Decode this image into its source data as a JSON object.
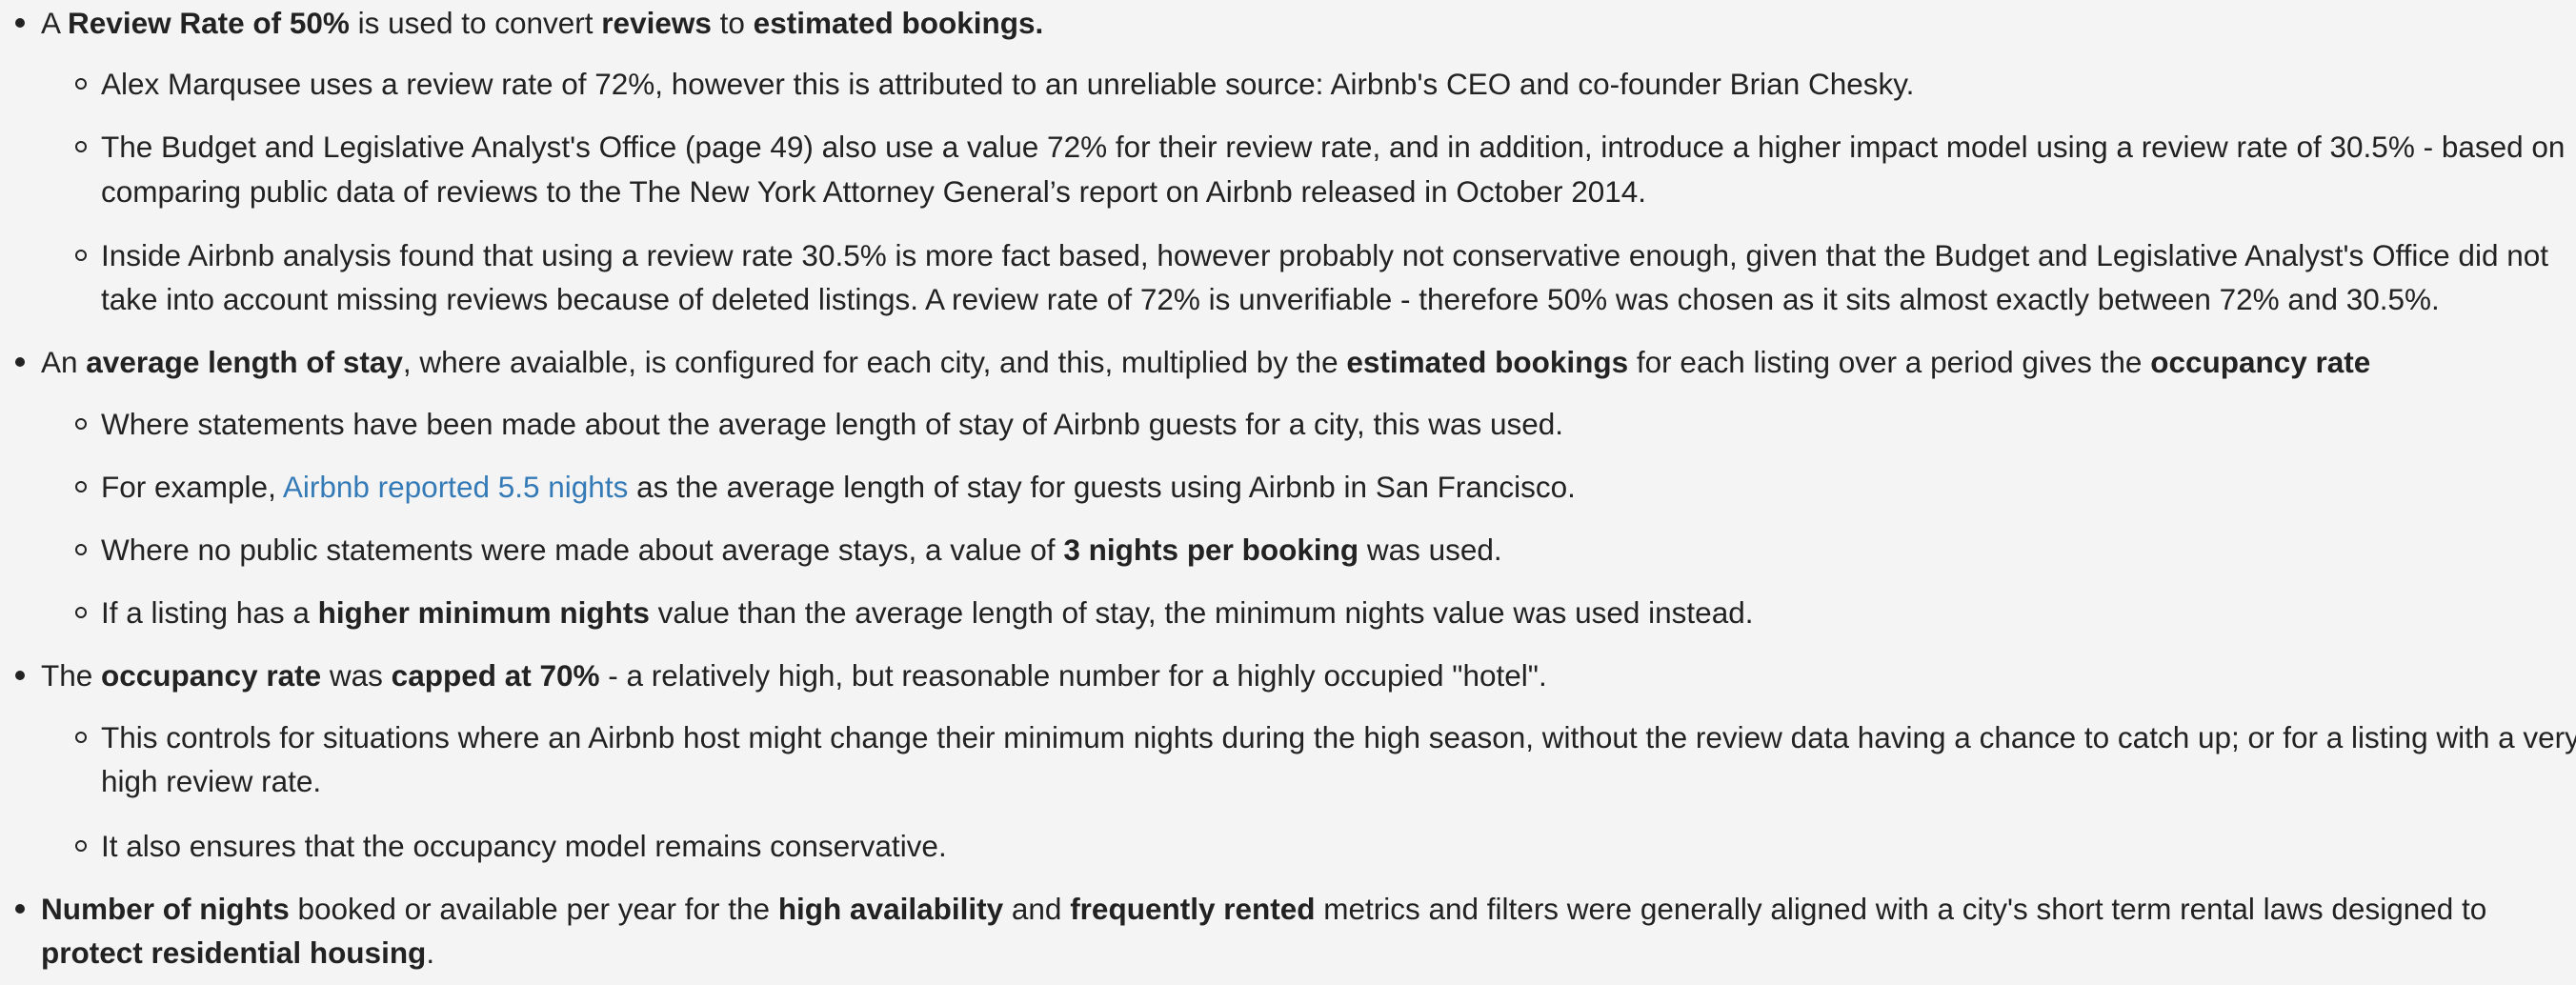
{
  "colors": {
    "text": "#222222",
    "background": "#f4f4f4",
    "link": "#337ab7"
  },
  "items": [
    {
      "segments": [
        {
          "text": "A ",
          "bold": false
        },
        {
          "text": "Review Rate of 50%",
          "bold": true
        },
        {
          "text": " is used to convert ",
          "bold": false
        },
        {
          "text": "reviews",
          "bold": true
        },
        {
          "text": " to ",
          "bold": false
        },
        {
          "text": "estimated bookings.",
          "bold": true
        }
      ],
      "subitems": [
        {
          "lines": [
            "Alex Marqusee uses a review rate of 72%, however this is attributed to an unreliable source: Airbnb's CEO and co-founder Brian Chesky."
          ]
        },
        {
          "lines": [
            "The Budget and Legislative Analyst's Office (page 49) also use a value 72% for their review rate, and in addition, introduce a higher impact model using a review rate of 30.5% - based on",
            "comparing public data of reviews to the The New York Attorney General’s report on Airbnb released in October 2014."
          ]
        },
        {
          "lines": [
            "Inside Airbnb analysis found that using a review rate 30.5% is more fact based, however probably not conservative enough, given that the Budget and Legislative Analyst's Office did not",
            "take into account missing reviews because of deleted listings. A review rate of 72% is unverifiable - therefore 50% was chosen as it sits almost exactly between 72% and 30.5%."
          ]
        }
      ]
    },
    {
      "segments": [
        {
          "text": "An ",
          "bold": false
        },
        {
          "text": "average length of stay",
          "bold": true
        },
        {
          "text": ", where avaialble, is configured for each city, and this, multiplied by the ",
          "bold": false
        },
        {
          "text": "estimated bookings",
          "bold": true
        },
        {
          "text": " for each listing over a period gives the ",
          "bold": false
        },
        {
          "text": "occupancy rate",
          "bold": true
        }
      ],
      "subitems": [
        {
          "text": "Where statements have been made about the average length of stay of Airbnb guests for a city, this was used."
        },
        {
          "before": "For example, ",
          "link": "Airbnb reported 5.5 nights",
          "after": " as the average length of stay for guests using Airbnb in San Francisco."
        },
        {
          "before": "Where no public statements were made about average stays, a value of ",
          "bold": "3 nights per booking",
          "after": " was used."
        },
        {
          "before": "If a listing has a ",
          "bold": "higher minimum nights",
          "after": " value than the average length of stay, the minimum nights value was used instead."
        }
      ]
    },
    {
      "segments": [
        {
          "text": "The ",
          "bold": false
        },
        {
          "text": "occupancy rate",
          "bold": true
        },
        {
          "text": " was ",
          "bold": false
        },
        {
          "text": "capped at 70%",
          "bold": true
        },
        {
          "text": " - a relatively high, but reasonable number for a highly occupied \"hotel\".",
          "bold": false
        }
      ],
      "subitems": [
        {
          "lines": [
            "This controls for situations where an Airbnb host might change their minimum nights during the high season, without the review data having a chance to catch up; or for a listing with a very",
            "high review rate."
          ]
        },
        {
          "lines": [
            "It also ensures that the occupancy model remains conservative."
          ]
        }
      ]
    },
    {
      "line1": [
        {
          "text": "Number of nights",
          "bold": true
        },
        {
          "text": " booked or available per year for the ",
          "bold": false
        },
        {
          "text": "high availability",
          "bold": true
        },
        {
          "text": " and ",
          "bold": false
        },
        {
          "text": "frequently rented",
          "bold": true
        },
        {
          "text": " metrics and filters were generally aligned with a city's short term rental laws designed to",
          "bold": false
        }
      ],
      "line2": [
        {
          "text": "protect residential housing",
          "bold": true
        },
        {
          "text": ".",
          "bold": false
        }
      ]
    }
  ]
}
